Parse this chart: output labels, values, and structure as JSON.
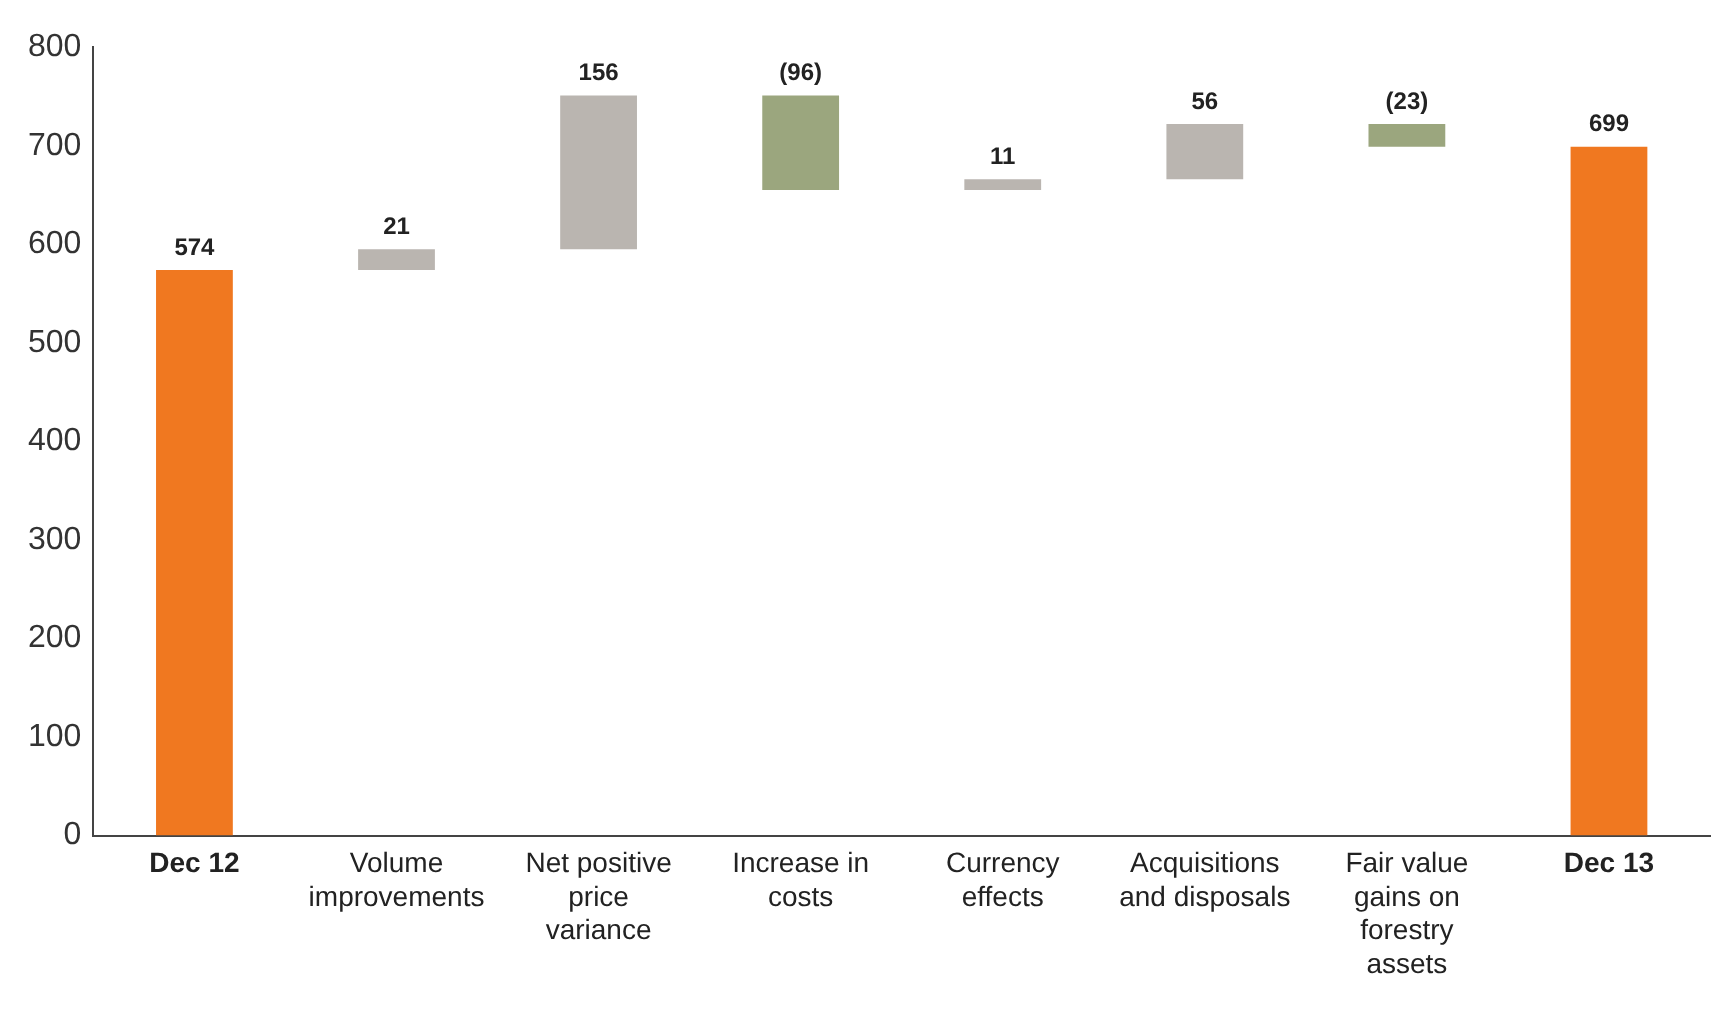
{
  "chart_data": {
    "type": "bar",
    "categories": [
      "Dec 12",
      "Volume improvements",
      "Net positive price variance",
      "Increase in costs",
      "Currency effects",
      "Acquisitions and disposals",
      "Fair value gains on forestry assets",
      "Dec 13"
    ],
    "values": [
      574,
      21,
      156,
      -96,
      11,
      56,
      -23,
      699
    ],
    "base": [
      0,
      574,
      595,
      751,
      655,
      666,
      722,
      0
    ],
    "colors": [
      "#f07820",
      "#bab5b0",
      "#bab5b0",
      "#9ba67e",
      "#bab5b0",
      "#bab5b0",
      "#9ba67e",
      "#f07820"
    ],
    "value_labels": [
      "574",
      "21",
      "156",
      "(96)",
      "11",
      "56",
      "(23)",
      "699"
    ],
    "ylim": [
      0,
      800
    ],
    "yticks": [
      0,
      100,
      200,
      300,
      400,
      500,
      600,
      700,
      800
    ],
    "grid": false,
    "legend": false
  }
}
